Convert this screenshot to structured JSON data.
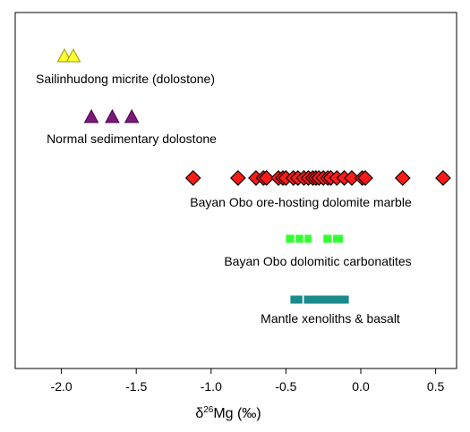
{
  "chart_data": {
    "type": "scatter",
    "title": "",
    "xlabel": {
      "prefix": "δ",
      "superscript": "26",
      "main": "Mg (‰)"
    },
    "ylabel": "",
    "xlim": [
      -2.5,
      0.6
    ],
    "x_ticks": [
      -2.0,
      -1.5,
      -1.0,
      -0.5,
      0.0,
      0.5
    ],
    "x_tick_labels": [
      "-2.0",
      "-1.5",
      "-1.0",
      "-0.5",
      "0.0",
      "0.5"
    ],
    "grid": false,
    "y_axis_visible": false,
    "series": [
      {
        "name": "Sailinhudong micrite (dolostone)",
        "marker": "triangle-up",
        "color": "#ffff33",
        "stroke": "#999900",
        "level": 1,
        "x": [
          -1.98,
          -1.92
        ]
      },
      {
        "name": "Normal sedimentary dolostone",
        "marker": "triangle-up",
        "color": "#7a1a7a",
        "stroke": "#4a004a",
        "level": 2,
        "x": [
          -1.8,
          -1.66,
          -1.53
        ]
      },
      {
        "name": "Bayan Obo ore-hosting dolomite marble",
        "marker": "diamond",
        "color": "#ff1a1a",
        "stroke": "#000000",
        "level": 3,
        "x": [
          -1.12,
          -0.82,
          -0.7,
          -0.65,
          -0.63,
          -0.55,
          -0.52,
          -0.5,
          -0.45,
          -0.42,
          -0.38,
          -0.35,
          -0.32,
          -0.3,
          -0.28,
          -0.25,
          -0.22,
          -0.2,
          -0.16,
          -0.11,
          -0.06,
          0.01,
          0.03,
          0.28,
          0.55
        ]
      },
      {
        "name": "Bayan Obo dolomitic carbonatites",
        "marker": "range",
        "color": "#33ff33",
        "stroke": "#009900",
        "level": 4,
        "ranges": [
          [
            -0.5,
            -0.33
          ],
          [
            -0.25,
            -0.12
          ]
        ],
        "dividers": [
          -0.44,
          -0.38,
          -0.19
        ]
      },
      {
        "name": "Mantle xenoliths & basalt",
        "marker": "range",
        "color": "#1a8a8a",
        "stroke": "#006666",
        "level": 5,
        "ranges": [
          [
            -0.47,
            -0.39
          ],
          [
            -0.38,
            -0.08
          ]
        ],
        "dividers": []
      }
    ]
  }
}
